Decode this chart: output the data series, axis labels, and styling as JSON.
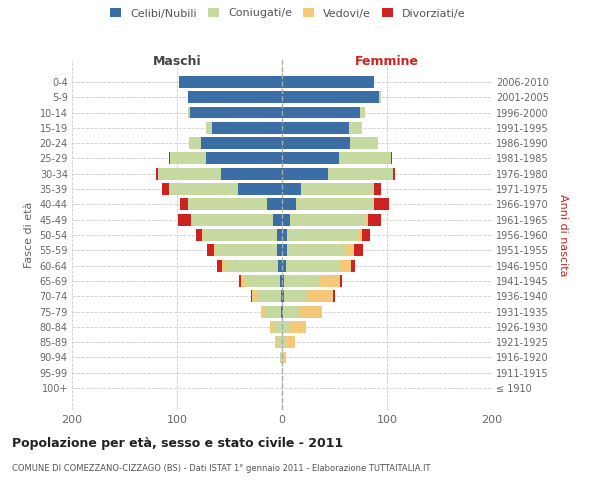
{
  "age_groups": [
    "100+",
    "95-99",
    "90-94",
    "85-89",
    "80-84",
    "75-79",
    "70-74",
    "65-69",
    "60-64",
    "55-59",
    "50-54",
    "45-49",
    "40-44",
    "35-39",
    "30-34",
    "25-29",
    "20-24",
    "15-19",
    "10-14",
    "5-9",
    "0-4"
  ],
  "birth_years": [
    "≤ 1910",
    "1911-1915",
    "1916-1920",
    "1921-1925",
    "1926-1930",
    "1931-1935",
    "1936-1940",
    "1941-1945",
    "1946-1950",
    "1951-1955",
    "1956-1960",
    "1961-1965",
    "1966-1970",
    "1971-1975",
    "1976-1980",
    "1981-1985",
    "1986-1990",
    "1991-1995",
    "1996-2000",
    "2001-2005",
    "2006-2010"
  ],
  "males_celibi": [
    0,
    0,
    0,
    0,
    0,
    1,
    1,
    2,
    4,
    5,
    5,
    9,
    14,
    42,
    58,
    72,
    77,
    67,
    88,
    90,
    98
  ],
  "males_coniugati": [
    0,
    0,
    2,
    5,
    8,
    14,
    22,
    33,
    50,
    58,
    70,
    78,
    76,
    66,
    60,
    35,
    12,
    5,
    2,
    0,
    0
  ],
  "males_vedovi": [
    0,
    0,
    0,
    2,
    3,
    5,
    6,
    4,
    3,
    2,
    1,
    0,
    0,
    0,
    0,
    0,
    0,
    0,
    0,
    0,
    0
  ],
  "males_divorziati": [
    0,
    0,
    0,
    0,
    0,
    0,
    1,
    2,
    5,
    6,
    6,
    12,
    7,
    6,
    2,
    1,
    0,
    0,
    0,
    0,
    0
  ],
  "females_nubili": [
    0,
    0,
    0,
    0,
    0,
    1,
    2,
    2,
    4,
    5,
    5,
    8,
    13,
    18,
    44,
    54,
    65,
    64,
    74,
    92,
    88
  ],
  "females_coniugate": [
    0,
    0,
    2,
    4,
    8,
    15,
    22,
    33,
    50,
    56,
    66,
    72,
    74,
    70,
    62,
    50,
    26,
    12,
    5,
    2,
    0
  ],
  "females_vedove": [
    0,
    0,
    2,
    8,
    15,
    22,
    25,
    20,
    12,
    8,
    5,
    2,
    1,
    0,
    0,
    0,
    0,
    0,
    0,
    0,
    0
  ],
  "females_divorziate": [
    0,
    0,
    0,
    0,
    0,
    0,
    1,
    2,
    4,
    8,
    8,
    12,
    14,
    6,
    2,
    1,
    0,
    0,
    0,
    0,
    0
  ],
  "color_celibi": "#3a6ea5",
  "color_coniugati": "#c5d9a0",
  "color_vedovi": "#f5c97a",
  "color_divorziati": "#cc2222",
  "xlim": 200,
  "title": "Popolazione per età, sesso e stato civile - 2011",
  "subtitle": "COMUNE DI COMEZZANO-CIZZAGO (BS) - Dati ISTAT 1° gennaio 2011 - Elaborazione TUTTAITALIA.IT",
  "ylabel_left": "Fasce di età",
  "ylabel_right": "Anni di nascita",
  "label_maschi": "Maschi",
  "label_femmine": "Femmine",
  "legend_labels": [
    "Celibi/Nubili",
    "Coniugati/e",
    "Vedovi/e",
    "Divorziati/e"
  ],
  "bg_color": "#ffffff",
  "grid_color": "#cccccc"
}
